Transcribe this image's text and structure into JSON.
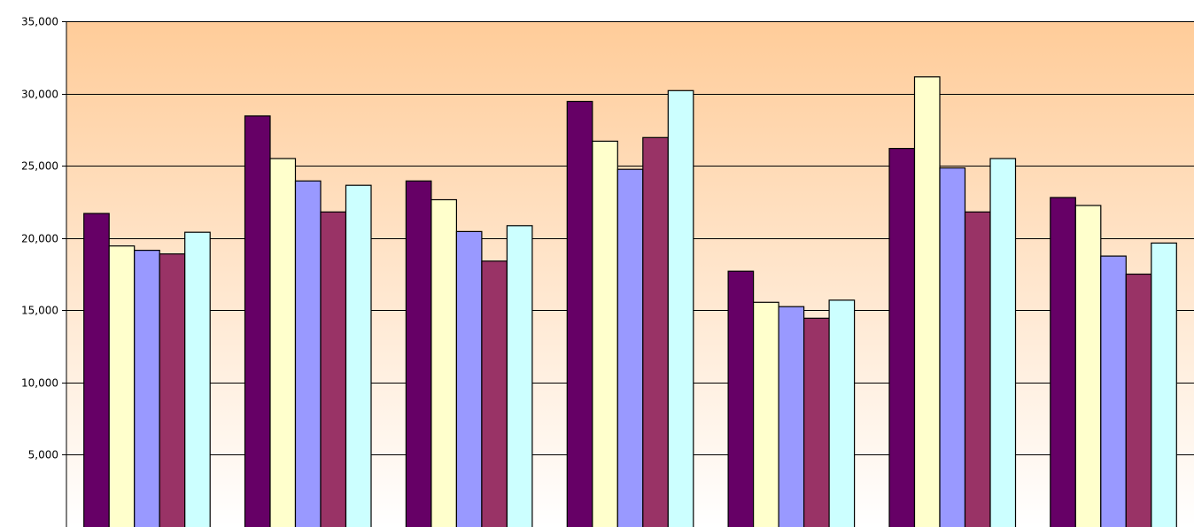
{
  "chart_data": {
    "type": "bar",
    "title": "",
    "xlabel": "",
    "ylabel": "",
    "ylim": [
      0,
      35000
    ],
    "y_ticks": [
      5000,
      10000,
      15000,
      20000,
      25000,
      30000,
      35000
    ],
    "y_tick_labels": [
      "5,000",
      "10,000",
      "15,000",
      "20,000",
      "25,000",
      "30,000",
      "35,000"
    ],
    "grid": true,
    "legend": "none",
    "categories": [
      "",
      "",
      "",
      "",
      "",
      "",
      ""
    ],
    "series": [
      {
        "color": "#660066",
        "values": [
          21700,
          28450,
          23950,
          29450,
          17700,
          26200,
          22800
        ]
      },
      {
        "color": "#FFFFCC",
        "values": [
          19450,
          25500,
          22650,
          26700,
          15550,
          31150,
          22250
        ]
      },
      {
        "color": "#9999FF",
        "values": [
          19150,
          23950,
          20450,
          24750,
          15250,
          24850,
          18750
        ]
      },
      {
        "color": "#993366",
        "values": [
          18900,
          21800,
          18400,
          26950,
          14450,
          21800,
          17500
        ]
      },
      {
        "color": "#CCFFFF",
        "values": [
          20400,
          23650,
          20850,
          30200,
          15700,
          25500,
          19650
        ]
      }
    ],
    "plot_area_gradient": [
      "#FFCC99",
      "#FFFFFF"
    ]
  }
}
